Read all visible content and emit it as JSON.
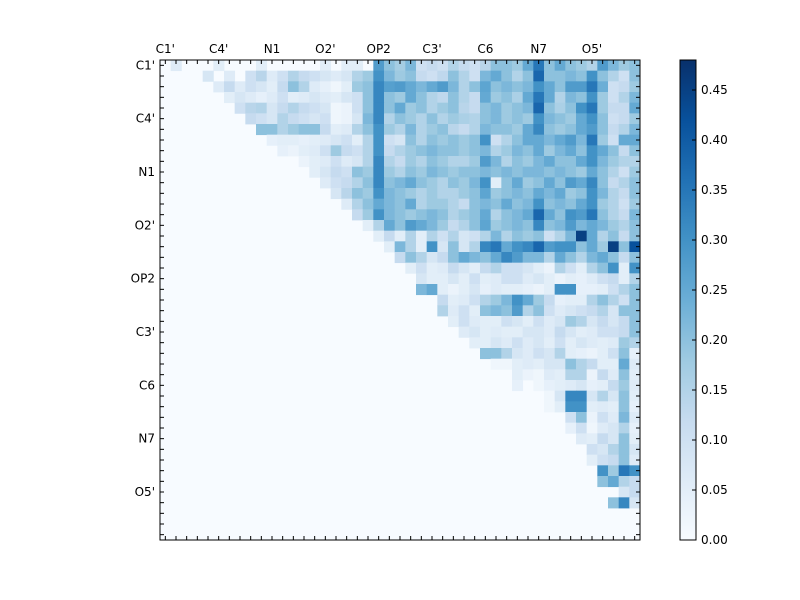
{
  "chart_data": {
    "type": "heatmap",
    "title": "",
    "xlabel": "",
    "ylabel": "",
    "size": 45,
    "x_tick_labels": [
      "C1'",
      "C4'",
      "N1",
      "O2'",
      "OP2",
      "C3'",
      "C6",
      "N7",
      "O5'"
    ],
    "y_tick_labels": [
      "C1'",
      "C4'",
      "N1",
      "O2'",
      "OP2",
      "C3'",
      "C6",
      "N7",
      "O5'"
    ],
    "tick_label_indices": [
      0,
      5,
      10,
      15,
      20,
      25,
      30,
      35,
      40
    ],
    "colorbar": {
      "min": 0.0,
      "max": 0.48,
      "tick_values": [
        0.0,
        0.05,
        0.1,
        0.15,
        0.2,
        0.25,
        0.3,
        0.35,
        0.4,
        0.45
      ],
      "tick_labels": [
        "0.00",
        "0.05",
        "0.10",
        "0.15",
        "0.20",
        "0.25",
        "0.30",
        "0.35",
        "0.40",
        "0.45"
      ]
    },
    "colormap": [
      "#f7fbff",
      "#deebf7",
      "#c6dbef",
      "#9ecae1",
      "#6baed6",
      "#4292c6",
      "#2171b5",
      "#08519c",
      "#08306b"
    ],
    "rows": [
      "0:1:0.06;5:0.05;9:0.05;15:0.05;17:0.05;18:0.05;20:0.28;21:0.2;22:0.17;23:0.22;24:0.1;25:0.12;26:0.1;27:0.15;28:0.12;29:0.1;30:0.14;31:0.2;32:0.2;33:0.18;34:0.25;35:0.35;36:0.2;37:0.25;38:0.2;39:0.18;40:0.15;41:0.28;42:0.22;43:0.18;44:0.2",
      "1:4:0.08;6:0.06;8:0.1;9:0.14;10:0.06;11:0.1;12:0.15;13:0.12;14:0.1;15:0.08;16:0.06;17:0.08;18:0.15;19:0.18;20:0.3;21:0.22;22:0.18;23:0.2;24:0.12;25:0.1;26:0.13;27:0.2;28:0.15;29:0.1;30:0.22;31:0.25;32:0.2;33:0.15;34:0.2;35:0.38;36:0.2;37:0.2;38:0.22;39:0.2;40:0.3;41:0.2;42:0.15;43:0.1;44:0.2",
      "2:5:0.06;6:0.12;7:0.06;8:0.1;9:0.08;10:0.05;11:0.12;12:0.2;13:0.15;14:0.06;15:0.04;16:0.02;17:0.05;18:0.18;19:0.2;20:0.32;21:0.27;22:0.28;23:0.25;24:0.22;25:0.25;26:0.28;27:0.22;28:0.15;29:0.2;30:0.26;31:0.2;32:0.22;33:0.2;34:0.22;35:0.3;36:0.25;37:0.2;38:0.28;39:0.28;40:0.35;41:0.24;42:0.1;43:0.12;44:0.18",
      "3:6:0.05;7:0.08;8:0.06;9:0.04;10:0.06;11:0.1;12:0.05;13:0.06;14:0.08;15:0.06;16:0.05;17:0.08;18:0.1;19:0.2;20:0.32;21:0.2;22:0.18;23:0.25;24:0.2;25:0.15;26:0.13;27:0.2;28:0.15;29:0.12;30:0.25;31:0.18;32:0.2;33:0.16;34:0.25;35:0.35;36:0.25;37:0.15;38:0.22;39:0.2;40:0.3;41:0.18;42:0.1;43:0.15;44:0.22",
      "4:7:0.1;8:0.14;9:0.15;10:0.08;11:0.12;12:0.15;13:0.12;14:0.1;15:0.08;16:0.02;17:0.03;18:0.1;19:0.2;20:0.32;21:0.2;22:0.25;23:0.18;24:0.2;25:0.15;26:0.18;27:0.2;28:0.14;29:0.12;30:0.2;31:0.22;32:0.18;33:0.2;34:0.22;35:0.38;36:0.2;37:0.16;38:0.2;39:0.3;40:0.35;41:0.18;42:0.12;43:0.12;44:0.25",
      "5:8:0.12;9:0.1;10:0.08;11:0.15;12:0.12;13:0.1;14:0.08;15:0.1;16:0.02;17:0.03;18:0.08;19:0.22;20:0.32;21:0.15;22:0.2;23:0.18;24:0.15;25:0.2;26:0.15;27:0.18;28:0.16;29:0.15;30:0.2;31:0.22;32:0.18;33:0.2;34:0.18;35:0.3;36:0.22;37:0.2;38:0.18;39:0.25;40:0.3;41:0.2;42:0.1;43:0.12;44:0.18",
      "6:9:0.2;10:0.2;11:0.15;12:0.18;13:0.2;14:0.2;15:0.12;16:0.05;17:0.06;18:0.15;19:0.2;20:0.3;21:0.18;22:0.15;23:0.22;24:0.15;25:0.18;26:0.2;27:0.14;28:0.12;29:0.15;30:0.22;31:0.2;32:0.2;33:0.18;34:0.25;35:0.32;36:0.2;37:0.18;38:0.2;39:0.25;40:0.28;41:0.2;42:0.12;43:0.15;44:0.22",
      "7:10:0.04;11:0.05;12:0.05;13:0.04;14:0.05;15:0.06;16:0.08;17:0.1;18:0.05;19:0.15;20:0.3;21:0.1;22:0.08;23:0.2;24:0.15;25:0.2;26:0.18;27:0.2;28:0.18;29:0.2;30:0.3;31:0.1;32:0.15;33:0.2;34:0.25;35:0.25;36:0.22;37:0.25;38:0.28;39:0.22;40:0.35;41:0.18;42:0.1;43:0.25;44:0.25",
      "8:11:0.04;12:0.03;13:0.05;14:0.06;15:0.1;16:0.18;17:0.12;18:0.1;19:0.15;20:0.3;21:0.12;22:0.15;23:0.18;24:0.2;25:0.22;26:0.2;27:0.2;28:0.18;29:0.2;30:0.22;31:0.15;32:0.18;33:0.22;34:0.2;35:0.25;36:0.18;37:0.22;38:0.25;39:0.2;40:0.3;41:0.25;42:0.2;43:0.12;44:0.2",
      "9:13:0.03;14:0.05;15:0.06;16:0.1;17:0.06;18:0.08;19:0.15;20:0.32;21:0.15;22:0.12;23:0.18;24:0.15;25:0.2;26:0.18;27:0.15;28:0.15;29:0.18;30:0.28;31:0.22;32:0.15;33:0.2;34:0.18;35:0.22;36:0.25;37:0.2;38:0.2;39:0.25;40:0.3;41:0.22;42:0.18;43:0.15;44:0.15",
      "10:14:0.05;15:0.08;16:0.12;17:0.1;18:0.2;19:0.18;20:0.32;21:0.18;22:0.15;23:0.2;24:0.18;25:0.22;26:0.2;27:0.18;28:0.2;29:0.2;30:0.22;31:0.2;32:0.22;33:0.2;34:0.22;35:0.22;36:0.2;37:0.22;38:0.2;39:0.18;40:0.25;41:0.2;42:0.15;43:0.1;44:0.18",
      "11:15:0.06;16:0.1;17:0.12;18:0.15;19:0.2;20:0.32;21:0.2;22:0.22;23:0.25;24:0.2;25:0.18;26:0.15;27:0.2;28:0.18;29:0.22;30:0.3;31:0.05;32:0.2;33:0.25;34:0.18;35:0.2;36:0.25;37:0.2;38:0.28;39:0.25;40:0.32;41:0.2;42:0.12;43:0.15;44:0.2",
      "12:16:0.08;17:0.14;18:0.2;19:0.18;20:0.3;21:0.22;22:0.2;23:0.18;24:0.15;25:0.18;26:0.15;27:0.15;28:0.18;29:0.2;30:0.26;31:0.18;32:0.2;33:0.22;34:0.2;35:0.25;36:0.22;37:0.25;38:0.18;39:0.2;40:0.3;41:0.22;42:0.15;43:0.12;44:0.2",
      "13:17:0.06;18:0.15;19:0.2;20:0.25;21:0.22;22:0.2;23:0.25;24:0.15;25:0.18;26:0.18;27:0.15;28:0.12;29:0.2;30:0.22;31:0.2;32:0.25;33:0.2;34:0.22;35:0.3;36:0.2;37:0.22;38:0.2;39:0.25;40:0.3;41:0.18;42:0.15;43:0.1;44:0.18",
      "14:18:0.12;19:0.18;20:0.3;21:0.22;22:0.2;23:0.18;24:0.2;25:0.22;26:0.2;27:0.15;28:0.18;29:0.2;30:0.25;31:0.15;32:0.2;33:0.22;34:0.25;35:0.38;36:0.25;37:0.2;38:0.3;39:0.28;40:0.35;41:0.2;42:0.15;43:0.12;44:0.22",
      "15:19:0.05;20:0.15;21:0.25;22:0.2;23:0.28;24:0.25;25:0.22;26:0.18;27:0.12;28:0.15;29:0.2;30:0.26;31:0.18;32:0.2;33:0.22;34:0.2;35:0.32;36:0.2;37:0.22;38:0.28;39:0.22;40:0.25;41:0.22;42:0.18;43:0.15;44:0.2",
      "16:20:0.05;21:0.12;22:0.05;23:0.15;24:0.05;25:0.15;26:0.1;27:0.15;28:0.08;29:0.1;30:0.15;31:0.22;32:0.15;33:0.2;34:0.18;35:0.2;36:0.1;37:0.15;38:0.22;39:0.45;40:0.25;41:0.15;42:0.2;43:0.12;44:0.2",
      "17:21:0.05;22:0.22;23:0.15;24:0.05;25:0.3;26:0.08;27:0.2;28:0.08;29:0.15;30:0.32;31:0.35;32:0.25;33:0.3;34:0.32;35:0.38;36:0.28;37:0.3;38:0.3;39:0.2;40:0.25;41:0.18;42:0.45;43:0.2;44:0.42",
      "18:22:0.12;23:0.2;24:0.15;25:0.08;26:0.12;27:0.2;28:0.25;29:0.22;30:0.2;31:0.25;32:0.32;33:0.28;34:0.22;35:0.22;36:0.15;37:0.25;38:0.2;39:0.15;40:0.22;41:0.25;42:0.2;43:0.12;44:0.2",
      "19:23:0.05;24:0.1;25:0.05;26:0.06;27:0.12;28:0.08;29:0.05;30:0.12;31:0.15;32:0.1;33:0.1;34:0.08;35:0.05;36:0.03;37:0.15;38:0.1;39:0.05;40:0.15;41:0.2;42:0.3;43:0.05;44:0.3",
      "20:24:0.08;25:0.05;26:0.05;27:0.08;28:0.05;29:0.1;30:0.05;31:0.06;32:0.1;33:0.1;34:0.06;35:0.08;36:0.05;37:0.03;38:0.05;39:0.04;40:0.06;41:0.1;42:0.12;43:0.05;44:0.15",
      "21:24:0.22;25:0.25;26:0.05;27:0.03;28:0.05;29:0.08;30:0.04;31:0.06;32:0.05;33:0.05;34:0.04;35:0.03;36:0.05;37:0.3;38:0.3;39:0.04;40:0.04;41:0.05;42:0.1;43:0.15;44:0.2",
      "22:26:0.12;27:0.05;28:0.06;29:0.1;30:0.15;31:0.18;32:0.22;33:0.3;34:0.25;35:0.18;36:0.12;37:0.04;38:0.05;39:0.05;40:0.15;41:0.2;42:0.15;43:0.1;44:0.2",
      "23:26:0.15;27:0.06;28:0.1;29:0.05;30:0.2;31:0.22;32:0.2;33:0.28;34:0.15;35:0.2;36:0.1;37:0.06;38:0.08;39:0.1;40:0.12;41:0.15;42:0.08;43:0.2;44:0.2",
      "24:27:0.05;28:0.1;29:0.06;30:0.05;31:0.05;32:0.1;33:0.08;34:0.05;35:0.1;36:0.06;37:0.08;38:0.18;39:0.15;40:0.08;41:0.12;42:0.08;43:0.12;44:0.2",
      "25:28:0.06;29:0.08;30:0.05;31:0.06;32:0.05;33:0.05;34:0.08;35:0.08;36:0.06;37:0.12;38:0.08;39:0.05;40:0.06;41:0.1;42:0.1;43:0.12;44:0.2",
      "26:29:0.05;30:0.05;31:0.08;32:0.06;33:0.1;34:0.06;35:0.08;36:0.05;37:0.1;38:0.05;39:0.08;40:0.06;41:0.05;42:0.06;43:0.18;44:0.15",
      "27:30:0.2;31:0.2;32:0.15;33:0.08;34:0.06;35:0.1;36:0.08;37:0.15;38:0.05;39:0.04;40:0.03;41:0.05;42:0.1;43:0.2;44:0.04",
      "28:31:0.02;32:0.02;33:0.05;34:0.06;35:0.05;36:0.08;37:0.08;38:0.2;39:0.15;40:0.12;41:0.05;42:0.05;43:0.25;44:0.06",
      "29:33:0.05;34:0.03;35:0.02;36:0.06;37:0.05;38:0.15;39:0.15;40:0.03;41:0.12;42:0.06;43:0.2;44:0.05",
      "30:33:0.04;35:0.02;36:0.04;37:0.05;38:0.06;39:0.08;40:0.04;41:0.05;42:0.12;43:0.18;44:0.06",
      "31:36:0.02;37:0.08;38:0.32;39:0.32;40:0.08;41:0.15;42:0.08;43:0.2;44:0.05",
      "32:36:0.02;37:0.05;38:0.3;39:0.3;40:0.05;41:0.06;42:0.05;43:0.2;44:0.04",
      "33:38:0.1;39:0.2;40:0.03;41:0.1;42:0.06;43:0.22;44:0.06",
      "34:38:0.04;39:0.1;40:0.02;41:0.06;42:0.08;43:0.15;44:0.04",
      "35:39:0.06;40:0.05;41:0.12;42:0.08;43:0.2;44:0.05",
      "36:40:0.1;41:0.08;42:0.15;43:0.2;44:0.08",
      "37:40:0.05;41:0.1;42:0.12;43:0.2;44:0.06",
      "38:41:0.3;42:0.18;43:0.35;44:0.3",
      "39:41:0.2;42:0.25;43:0.15;44:0.12",
      "40:43:0.08;44:0.12",
      "41:42:0.2;43:0.32;44:0.08",
      "",
      "",
      ""
    ]
  }
}
